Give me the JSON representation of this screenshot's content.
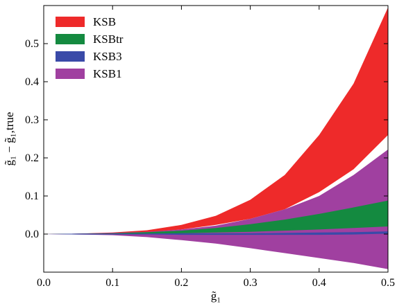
{
  "chart_data": {
    "type": "area",
    "xlabel": "g̃₁",
    "ylabel": "g̃₁ − g̃₁,true",
    "xlim": [
      0.0,
      0.5
    ],
    "ylim": [
      -0.1,
      0.6
    ],
    "xticks": [
      "0.0",
      "0.1",
      "0.2",
      "0.3",
      "0.4",
      "0.5"
    ],
    "yticks": [
      "0.0",
      "0.1",
      "0.2",
      "0.3",
      "0.4",
      "0.5"
    ],
    "legend_position": "top-left",
    "x": [
      0.0,
      0.05,
      0.1,
      0.15,
      0.2,
      0.25,
      0.3,
      0.35,
      0.4,
      0.45,
      0.5
    ],
    "series": [
      {
        "name": "KSB",
        "color": "#ee2a2a",
        "lower": [
          0.0,
          0.0,
          0.002,
          0.005,
          0.012,
          0.024,
          0.04,
          0.065,
          0.11,
          0.17,
          0.26
        ],
        "upper": [
          0.0,
          0.001,
          0.004,
          0.01,
          0.024,
          0.048,
          0.09,
          0.155,
          0.26,
          0.395,
          0.595
        ]
      },
      {
        "name": "KSB1",
        "color": "#a040a0",
        "lower": [
          0.0,
          -0.001,
          -0.003,
          -0.008,
          -0.016,
          -0.025,
          -0.037,
          -0.05,
          -0.063,
          -0.076,
          -0.092
        ],
        "upper": [
          0.0,
          0.001,
          0.003,
          0.006,
          0.012,
          0.022,
          0.04,
          0.065,
          0.1,
          0.155,
          0.222
        ]
      },
      {
        "name": "KSBtr",
        "color": "#148a40",
        "lower": [
          0.0,
          0.0,
          0.0,
          0.001,
          0.002,
          0.004,
          0.006,
          0.009,
          0.012,
          0.016,
          0.02
        ],
        "upper": [
          0.0,
          0.001,
          0.002,
          0.005,
          0.009,
          0.016,
          0.026,
          0.038,
          0.053,
          0.07,
          0.088
        ]
      },
      {
        "name": "KSB3",
        "color": "#3a4aa8",
        "lower": [
          0.0,
          -0.001,
          -0.001,
          -0.001,
          -0.002,
          -0.002,
          -0.002,
          -0.002,
          -0.002,
          -0.001,
          0.001
        ],
        "upper": [
          0.0,
          0.001,
          0.001,
          0.001,
          0.002,
          0.002,
          0.002,
          0.003,
          0.004,
          0.005,
          0.007
        ]
      }
    ],
    "legend_order": [
      "KSB",
      "KSBtr",
      "KSB3",
      "KSB1"
    ]
  }
}
